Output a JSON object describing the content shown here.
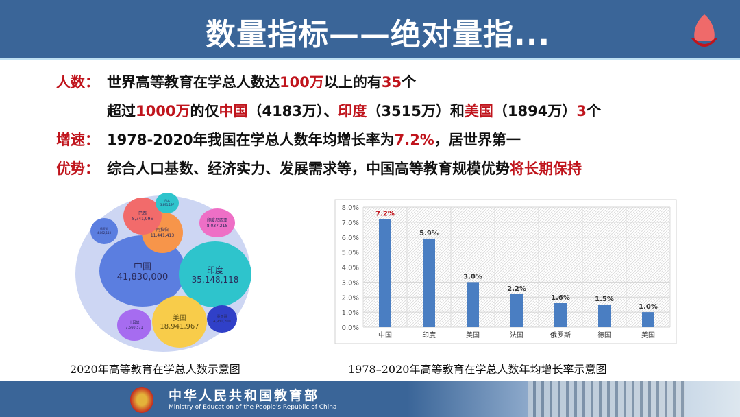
{
  "header": {
    "title": "数量指标——绝对量指..."
  },
  "lines": [
    {
      "label": "人数：",
      "parts": [
        {
          "t": "世界高等教育在学总人数达",
          "r": false
        },
        {
          "t": "100万",
          "r": true
        },
        {
          "t": "以上的有",
          "r": false
        },
        {
          "t": "35",
          "r": true
        },
        {
          "t": "个",
          "r": false
        }
      ]
    },
    {
      "label": "",
      "parts": [
        {
          "t": "超过",
          "r": false
        },
        {
          "t": "1000万",
          "r": true
        },
        {
          "t": "的仅",
          "r": false
        },
        {
          "t": "中国",
          "r": true
        },
        {
          "t": "（4183万）、",
          "r": false
        },
        {
          "t": "印度",
          "r": true
        },
        {
          "t": "（3515万）和",
          "r": false
        },
        {
          "t": "美国",
          "r": true
        },
        {
          "t": "（1894万）",
          "r": false
        },
        {
          "t": "3",
          "r": true
        },
        {
          "t": "个",
          "r": false
        }
      ]
    },
    {
      "label": "增速：",
      "parts": [
        {
          "t": "1978-2020年我国在学总人数年均增长率为",
          "r": false
        },
        {
          "t": "7.2%",
          "r": true
        },
        {
          "t": "，居世界第一",
          "r": false
        }
      ]
    },
    {
      "label": "优势：",
      "parts": [
        {
          "t": "综合人口基数、经济实力、发展需求等，中国高等教育规模优势",
          "r": false
        },
        {
          "t": "将长期保持",
          "r": true
        }
      ]
    }
  ],
  "bubbles": [
    {
      "name": "中国",
      "value": "41,830,000",
      "color": "#5b7ee0"
    },
    {
      "name": "印度",
      "value": "35,148,118",
      "color": "#2ec4cc"
    },
    {
      "name": "美国",
      "value": "18,941,967",
      "color": "#f8cc4a"
    },
    {
      "name": "阿拉伯",
      "value": "11,441,413",
      "color": "#f7954a"
    },
    {
      "name": "巴西",
      "value": "8,741,996",
      "color": "#f26b6b"
    },
    {
      "name": "印度尼西亚",
      "value": "8,037,218",
      "color": "#ee6fc6"
    },
    {
      "name": "土耳其",
      "value": "7,560,371",
      "color": "#a66cf0"
    },
    {
      "name": "墨西哥",
      "value": "4,931,200",
      "color": "#3040c8"
    },
    {
      "name": "俄罗斯",
      "value": "4,062,110",
      "color": "#5b7ee0"
    },
    {
      "name": "日本",
      "value": "3,891,197",
      "color": "#2ec4cc"
    }
  ],
  "chart_data": {
    "type": "bar",
    "categories": [
      "中国",
      "印度",
      "美国",
      "法国",
      "俄罗斯",
      "德国",
      "美国"
    ],
    "values": [
      7.2,
      5.9,
      3.0,
      2.2,
      1.6,
      1.5,
      1.0
    ],
    "labels": [
      "7.2%",
      "5.9%",
      "3.0%",
      "2.2%",
      "1.6%",
      "1.5%",
      "1.0%"
    ],
    "ylim": [
      0,
      8
    ],
    "yticks": [
      "0.0%",
      "1.0%",
      "2.0%",
      "3.0%",
      "4.0%",
      "5.0%",
      "6.0%",
      "7.0%",
      "8.0%"
    ],
    "bar_color": "#4a7ec2",
    "highlight_color": "#c0141c"
  },
  "captions": {
    "left": "2020年高等教育在学总人数示意图",
    "right": "1978–2020年高等教育在学总人数年均增长率示意图"
  },
  "footer": {
    "cn": "中华人民共和国教育部",
    "en": "Ministry of Education of the People's Republic of China"
  }
}
